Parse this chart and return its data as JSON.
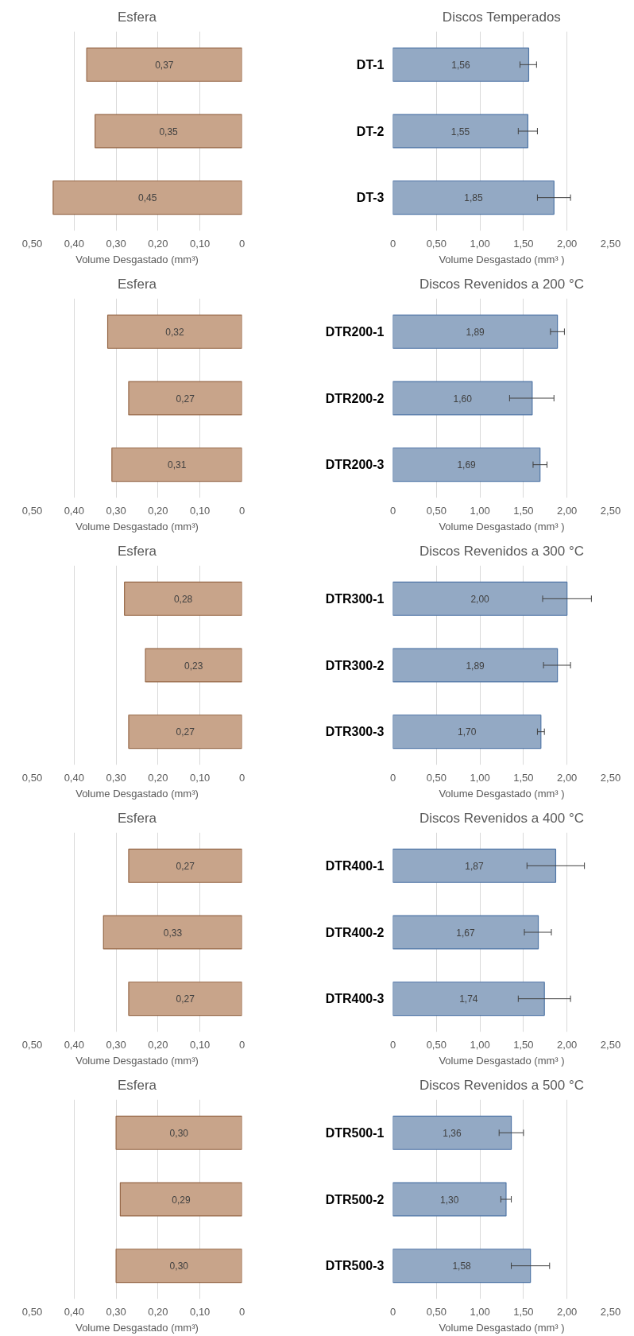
{
  "chart_data": [
    {
      "type": "bar",
      "orientation": "horizontal",
      "title": "Esfera",
      "xlabel": "Volume Desgastado (mm³)",
      "categories": [
        null,
        null,
        null
      ],
      "values": [
        0.37,
        0.35,
        0.45
      ],
      "value_labels": [
        "0,37",
        "0,35",
        "0,45"
      ],
      "color": "#c8a48a",
      "xlim": [
        0.5,
        0
      ],
      "xticks": [
        {
          "value": 0.5,
          "label": "0,50"
        },
        {
          "value": 0.4,
          "label": "0,40"
        },
        {
          "value": 0.3,
          "label": "0,30"
        },
        {
          "value": 0.2,
          "label": "0,20"
        },
        {
          "value": 0.1,
          "label": "0,10"
        },
        0
      ],
      "grid": "x",
      "tick_labels": "x"
    },
    {
      "type": "bar",
      "orientation": "horizontal",
      "title": "Discos Temperados",
      "xlabel": "Volume Desgastado (mm³ )",
      "categories": [
        "DT-1",
        "DT-2",
        "DT-3"
      ],
      "values": [
        1.56,
        1.55,
        1.85
      ],
      "errors": [
        [
          1.46,
          1.65
        ],
        [
          1.44,
          1.66
        ],
        [
          1.66,
          2.04
        ]
      ],
      "value_labels": [
        "1,56",
        "1,55",
        "1,85"
      ],
      "color": "#93a9c4",
      "xlim": [
        0,
        2.5
      ],
      "xticks": [
        0,
        {
          "value": 0.5,
          "label": "0,50"
        },
        {
          "value": 1.0,
          "label": "1,00"
        },
        {
          "value": 1.5,
          "label": "1,50"
        },
        {
          "value": 2.0,
          "label": "2,00"
        },
        {
          "value": 2.5,
          "label": "2,50"
        }
      ],
      "grid": "x"
    },
    {
      "type": "bar",
      "orientation": "horizontal",
      "title": "Esfera",
      "xlabel": "Volume Desgastado (mm³)",
      "categories": [
        null,
        null,
        null
      ],
      "values": [
        0.32,
        0.27,
        0.31
      ],
      "value_labels": [
        "0,32",
        "0,27",
        "0,31"
      ],
      "color": "#c8a48a",
      "xlim": [
        0.5,
        0
      ],
      "xticks": [
        {
          "value": 0.5,
          "label": "0,50"
        },
        {
          "value": 0.4,
          "label": "0,40"
        },
        {
          "value": 0.3,
          "label": "0,30"
        },
        {
          "value": 0.2,
          "label": "0,20"
        },
        {
          "value": 0.1,
          "label": "0,10"
        },
        0
      ],
      "grid": "x",
      "tick_labels": "x"
    },
    {
      "type": "bar",
      "orientation": "horizontal",
      "title": "Discos Revenidos a 200 °C",
      "xlabel": "Volume Desgastado (mm³ )",
      "categories": [
        "DTR200-1",
        "DTR200-2",
        "DTR200-3"
      ],
      "values": [
        1.89,
        1.6,
        1.69
      ],
      "errors": [
        [
          1.81,
          1.97
        ],
        [
          1.34,
          1.85
        ],
        [
          1.61,
          1.77
        ]
      ],
      "value_labels": [
        "1,89",
        "1,60",
        "1,69"
      ],
      "color": "#93a9c4",
      "xlim": [
        0,
        2.5
      ],
      "xticks": [
        0,
        {
          "value": 0.5,
          "label": "0,50"
        },
        {
          "value": 1.0,
          "label": "1,00"
        },
        {
          "value": 1.5,
          "label": "1,50"
        },
        {
          "value": 2.0,
          "label": "2,00"
        },
        {
          "value": 2.5,
          "label": "2,50"
        }
      ],
      "grid": "x"
    },
    {
      "type": "bar",
      "orientation": "horizontal",
      "title": "Esfera",
      "xlabel": "Volume Desgastado (mm³)",
      "categories": [
        null,
        null,
        null
      ],
      "values": [
        0.28,
        0.23,
        0.27
      ],
      "value_labels": [
        "0,28",
        "0,23",
        "0,27"
      ],
      "color": "#c8a48a",
      "xlim": [
        0.5,
        0
      ],
      "xticks": [
        {
          "value": 0.5,
          "label": "0,50"
        },
        {
          "value": 0.4,
          "label": "0,40"
        },
        {
          "value": 0.3,
          "label": "0,30"
        },
        {
          "value": 0.2,
          "label": "0,20"
        },
        {
          "value": 0.1,
          "label": "0,10"
        },
        0
      ],
      "grid": "x",
      "tick_labels": "x"
    },
    {
      "type": "bar",
      "orientation": "horizontal",
      "title": "Discos Revenidos a 300 °C",
      "xlabel": "Volume Desgastado (mm³ )",
      "categories": [
        "DTR300-1",
        "DTR300-2",
        "DTR300-3"
      ],
      "values": [
        2.0,
        1.89,
        1.7
      ],
      "errors": [
        [
          1.72,
          2.28
        ],
        [
          1.73,
          2.04
        ],
        [
          1.66,
          1.74
        ]
      ],
      "value_labels": [
        "2,00",
        "1,89",
        "1,70"
      ],
      "color": "#93a9c4",
      "xlim": [
        0,
        2.5
      ],
      "xticks": [
        0,
        {
          "value": 0.5,
          "label": "0,50"
        },
        {
          "value": 1.0,
          "label": "1,00"
        },
        {
          "value": 1.5,
          "label": "1,50"
        },
        {
          "value": 2.0,
          "label": "2,00"
        },
        {
          "value": 2.5,
          "label": "2,50"
        }
      ],
      "grid": "x"
    },
    {
      "type": "bar",
      "orientation": "horizontal",
      "title": "Esfera",
      "xlabel": "Volume Desgastado (mm³)",
      "categories": [
        null,
        null,
        null
      ],
      "values": [
        0.27,
        0.33,
        0.27
      ],
      "value_labels": [
        "0,27",
        "0,33",
        "0,27"
      ],
      "color": "#c8a48a",
      "xlim": [
        0.5,
        0
      ],
      "xticks": [
        {
          "value": 0.5,
          "label": "0,50"
        },
        {
          "value": 0.4,
          "label": "0,40"
        },
        {
          "value": 0.3,
          "label": "0,30"
        },
        {
          "value": 0.2,
          "label": "0,20"
        },
        {
          "value": 0.1,
          "label": "0,10"
        },
        0
      ],
      "grid": "x",
      "tick_labels": "x"
    },
    {
      "type": "bar",
      "orientation": "horizontal",
      "title": "Discos Revenidos a 400 °C",
      "xlabel": "Volume Desgastado (mm³ )",
      "categories": [
        "DTR400-1",
        "DTR400-2",
        "DTR400-3"
      ],
      "values": [
        1.87,
        1.67,
        1.74
      ],
      "errors": [
        [
          1.54,
          2.2
        ],
        [
          1.51,
          1.82
        ],
        [
          1.44,
          2.04
        ]
      ],
      "value_labels": [
        "1,87",
        "1,67",
        "1,74"
      ],
      "color": "#93a9c4",
      "xlim": [
        0,
        2.5
      ],
      "xticks": [
        0,
        {
          "value": 0.5,
          "label": "0,50"
        },
        {
          "value": 1.0,
          "label": "1,00"
        },
        {
          "value": 1.5,
          "label": "1,50"
        },
        {
          "value": 2.0,
          "label": "2,00"
        },
        {
          "value": 2.5,
          "label": "2,50"
        }
      ],
      "grid": "x"
    },
    {
      "type": "bar",
      "orientation": "horizontal",
      "title": "Esfera",
      "xlabel": "Volume Desgastado (mm³)",
      "categories": [
        null,
        null,
        null
      ],
      "values": [
        0.3,
        0.29,
        0.3
      ],
      "value_labels": [
        "0,30",
        "0,29",
        "0,30"
      ],
      "color": "#c8a48a",
      "xlim": [
        0.5,
        0
      ],
      "xticks": [
        {
          "value": 0.5,
          "label": "0,50"
        },
        {
          "value": 0.4,
          "label": "0,40"
        },
        {
          "value": 0.3,
          "label": "0,30"
        },
        {
          "value": 0.2,
          "label": "0,20"
        },
        {
          "value": 0.1,
          "label": "0,10"
        },
        0
      ],
      "grid": "x",
      "tick_labels": "x"
    },
    {
      "type": "bar",
      "orientation": "horizontal",
      "title": "Discos Revenidos a 500 °C",
      "xlabel": "Volume Desgastado (mm³ )",
      "categories": [
        "DTR500-1",
        "DTR500-2",
        "DTR500-3"
      ],
      "values": [
        1.36,
        1.3,
        1.58
      ],
      "errors": [
        [
          1.22,
          1.5
        ],
        [
          1.24,
          1.36
        ],
        [
          1.36,
          1.8
        ]
      ],
      "value_labels": [
        "1,36",
        "1,30",
        "1,58"
      ],
      "color": "#93a9c4",
      "xlim": [
        0,
        2.5
      ],
      "xticks": [
        0,
        {
          "value": 0.5,
          "label": "0,50"
        },
        {
          "value": 1.0,
          "label": "1,00"
        },
        {
          "value": 1.5,
          "label": "1,50"
        },
        {
          "value": 2.0,
          "label": "2,00"
        },
        {
          "value": 2.5,
          "label": "2,50"
        }
      ],
      "grid": "x"
    }
  ]
}
